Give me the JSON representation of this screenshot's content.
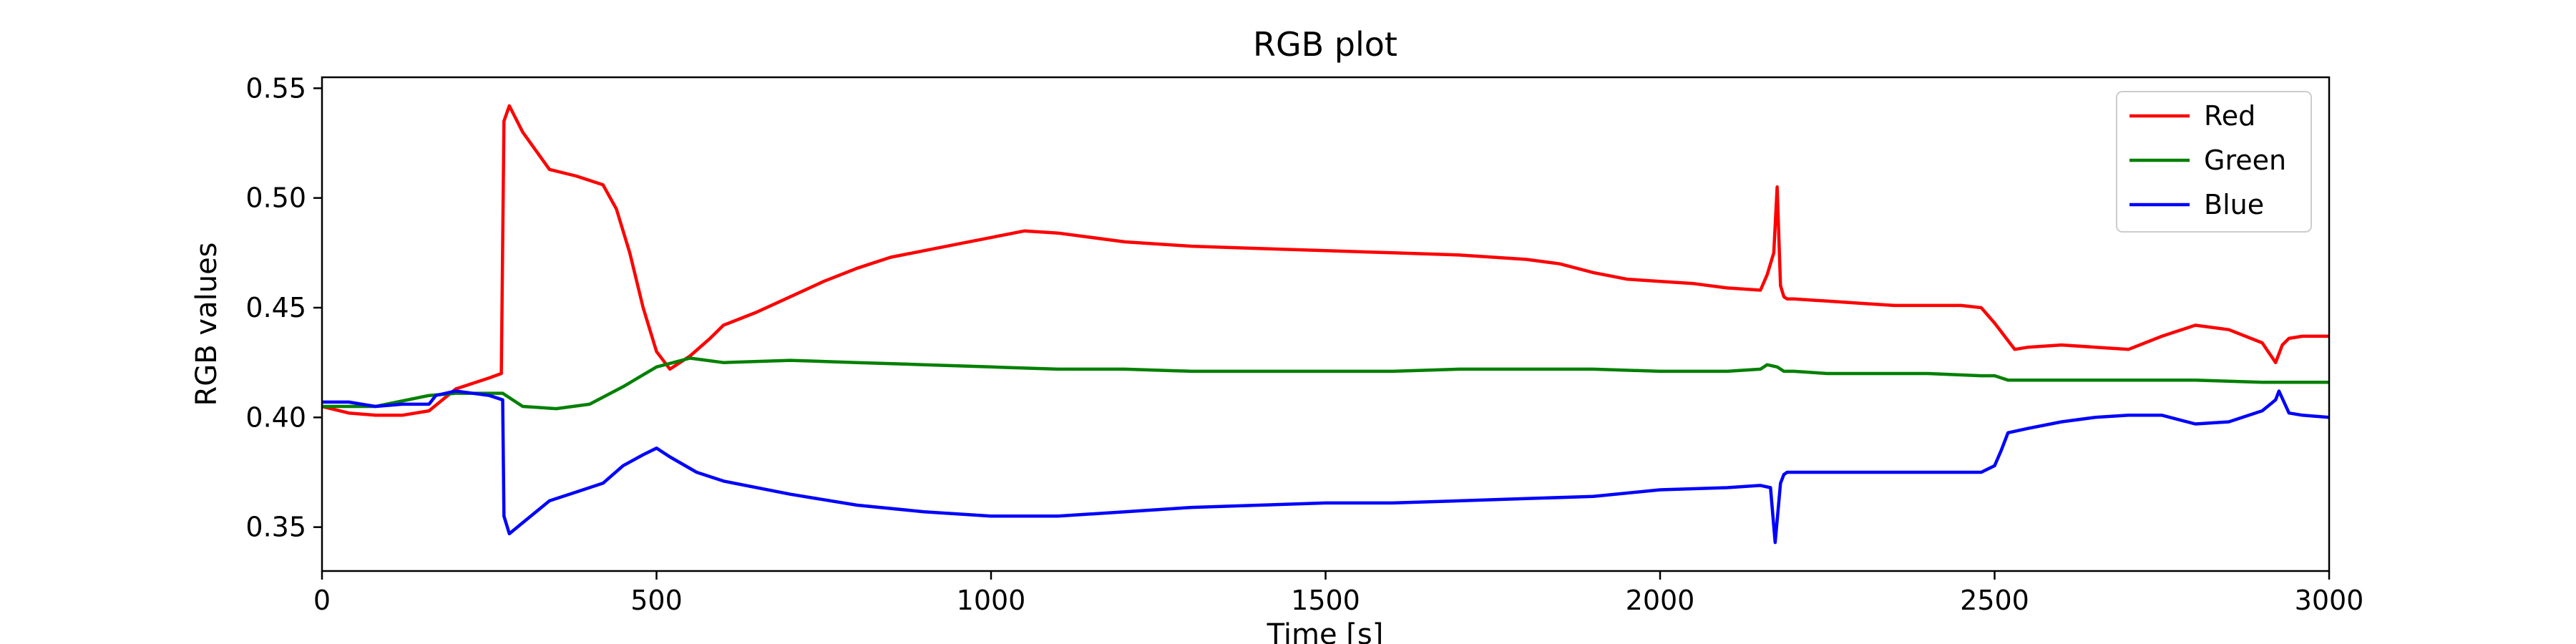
{
  "chart_data": {
    "type": "line",
    "title": "RGB plot",
    "xlabel": "Time [s]",
    "ylabel": "RGB values",
    "xlim": [
      0,
      3000
    ],
    "ylim": [
      0.33,
      0.555
    ],
    "xticks": [
      0,
      500,
      1000,
      1500,
      2000,
      2500,
      3000
    ],
    "yticks": [
      0.35,
      0.4,
      0.45,
      0.5,
      0.55
    ],
    "ytick_labels": [
      "0.35",
      "0.40",
      "0.45",
      "0.50",
      "0.55"
    ],
    "grid": false,
    "legend_position": "top-right",
    "series": [
      {
        "name": "Red",
        "color": "#ff0000",
        "x": [
          0,
          40,
          80,
          120,
          160,
          200,
          250,
          268,
          272,
          280,
          300,
          340,
          380,
          420,
          440,
          460,
          480,
          500,
          520,
          550,
          580,
          600,
          650,
          700,
          750,
          800,
          850,
          900,
          950,
          1000,
          1050,
          1100,
          1200,
          1300,
          1400,
          1500,
          1600,
          1700,
          1800,
          1850,
          1900,
          1950,
          2000,
          2050,
          2100,
          2150,
          2160,
          2170,
          2175,
          2180,
          2185,
          2190,
          2200,
          2250,
          2300,
          2350,
          2400,
          2450,
          2480,
          2500,
          2520,
          2530,
          2550,
          2600,
          2650,
          2700,
          2750,
          2800,
          2850,
          2900,
          2920,
          2930,
          2940,
          2960,
          3000
        ],
        "values": [
          0.405,
          0.402,
          0.401,
          0.401,
          0.403,
          0.413,
          0.418,
          0.42,
          0.535,
          0.542,
          0.53,
          0.513,
          0.51,
          0.506,
          0.495,
          0.475,
          0.45,
          0.43,
          0.422,
          0.428,
          0.436,
          0.442,
          0.448,
          0.455,
          0.462,
          0.468,
          0.473,
          0.476,
          0.479,
          0.482,
          0.485,
          0.484,
          0.48,
          0.478,
          0.477,
          0.476,
          0.475,
          0.474,
          0.472,
          0.47,
          0.466,
          0.463,
          0.462,
          0.461,
          0.459,
          0.458,
          0.465,
          0.475,
          0.505,
          0.46,
          0.455,
          0.454,
          0.454,
          0.453,
          0.452,
          0.451,
          0.451,
          0.451,
          0.45,
          0.443,
          0.435,
          0.431,
          0.432,
          0.433,
          0.432,
          0.431,
          0.437,
          0.442,
          0.44,
          0.434,
          0.425,
          0.433,
          0.436,
          0.437,
          0.437
        ]
      },
      {
        "name": "Green",
        "color": "#008000",
        "x": [
          0,
          80,
          160,
          200,
          250,
          270,
          300,
          350,
          400,
          450,
          500,
          550,
          600,
          700,
          800,
          900,
          1000,
          1100,
          1200,
          1300,
          1400,
          1500,
          1600,
          1700,
          1800,
          1900,
          2000,
          2100,
          2150,
          2160,
          2175,
          2185,
          2200,
          2250,
          2300,
          2400,
          2480,
          2500,
          2520,
          2600,
          2700,
          2800,
          2900,
          3000
        ],
        "values": [
          0.405,
          0.405,
          0.41,
          0.411,
          0.411,
          0.411,
          0.405,
          0.404,
          0.406,
          0.414,
          0.423,
          0.427,
          0.425,
          0.426,
          0.425,
          0.424,
          0.423,
          0.422,
          0.422,
          0.421,
          0.421,
          0.421,
          0.421,
          0.422,
          0.422,
          0.422,
          0.421,
          0.421,
          0.422,
          0.424,
          0.423,
          0.421,
          0.421,
          0.42,
          0.42,
          0.42,
          0.419,
          0.419,
          0.417,
          0.417,
          0.417,
          0.417,
          0.416,
          0.416
        ]
      },
      {
        "name": "Blue",
        "color": "#0000ff",
        "x": [
          0,
          40,
          80,
          120,
          160,
          170,
          200,
          250,
          270,
          272,
          280,
          300,
          340,
          380,
          420,
          450,
          480,
          500,
          520,
          560,
          600,
          700,
          800,
          900,
          1000,
          1100,
          1200,
          1300,
          1400,
          1500,
          1600,
          1700,
          1800,
          1900,
          2000,
          2100,
          2150,
          2165,
          2172,
          2180,
          2185,
          2190,
          2200,
          2250,
          2300,
          2400,
          2480,
          2500,
          2510,
          2520,
          2550,
          2600,
          2650,
          2700,
          2750,
          2800,
          2850,
          2900,
          2920,
          2925,
          2940,
          2960,
          3000
        ],
        "values": [
          0.407,
          0.407,
          0.405,
          0.406,
          0.406,
          0.41,
          0.412,
          0.41,
          0.408,
          0.355,
          0.347,
          0.352,
          0.362,
          0.366,
          0.37,
          0.378,
          0.383,
          0.386,
          0.382,
          0.375,
          0.371,
          0.365,
          0.36,
          0.357,
          0.355,
          0.355,
          0.357,
          0.359,
          0.36,
          0.361,
          0.361,
          0.362,
          0.363,
          0.364,
          0.367,
          0.368,
          0.369,
          0.368,
          0.343,
          0.37,
          0.374,
          0.375,
          0.375,
          0.375,
          0.375,
          0.375,
          0.375,
          0.378,
          0.385,
          0.393,
          0.395,
          0.398,
          0.4,
          0.401,
          0.401,
          0.397,
          0.398,
          0.403,
          0.408,
          0.412,
          0.402,
          0.401,
          0.4
        ]
      }
    ]
  }
}
